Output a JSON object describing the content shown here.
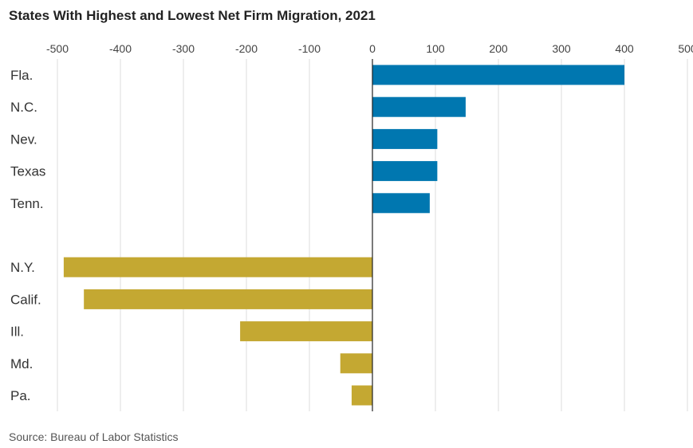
{
  "chart_data": {
    "type": "bar",
    "orientation": "horizontal",
    "title": "States With Highest and Lowest Net Firm Migration, 2021",
    "source": "Source: Bureau of Labor Statistics",
    "xlim": [
      -500,
      500
    ],
    "xticks": [
      -500,
      -400,
      -300,
      -200,
      -100,
      0,
      100,
      200,
      300,
      400,
      500
    ],
    "xtick_labels": [
      "-500",
      "-400",
      "-300",
      "-200",
      "-100",
      "0",
      "100",
      "200",
      "300",
      "400",
      "500"
    ],
    "grid": "vertical",
    "series": [
      {
        "color": "#0077b0",
        "categories": [
          "Fla.",
          "N.C.",
          "Nev.",
          "Texas",
          "Tenn."
        ],
        "values": [
          400,
          148,
          103,
          103,
          91
        ]
      },
      {
        "color": "#c4a832",
        "categories": [
          "N.Y.",
          "Calif.",
          "Ill.",
          "Md.",
          "Pa."
        ],
        "values": [
          -490,
          -458,
          -210,
          -51,
          -33
        ]
      }
    ]
  }
}
